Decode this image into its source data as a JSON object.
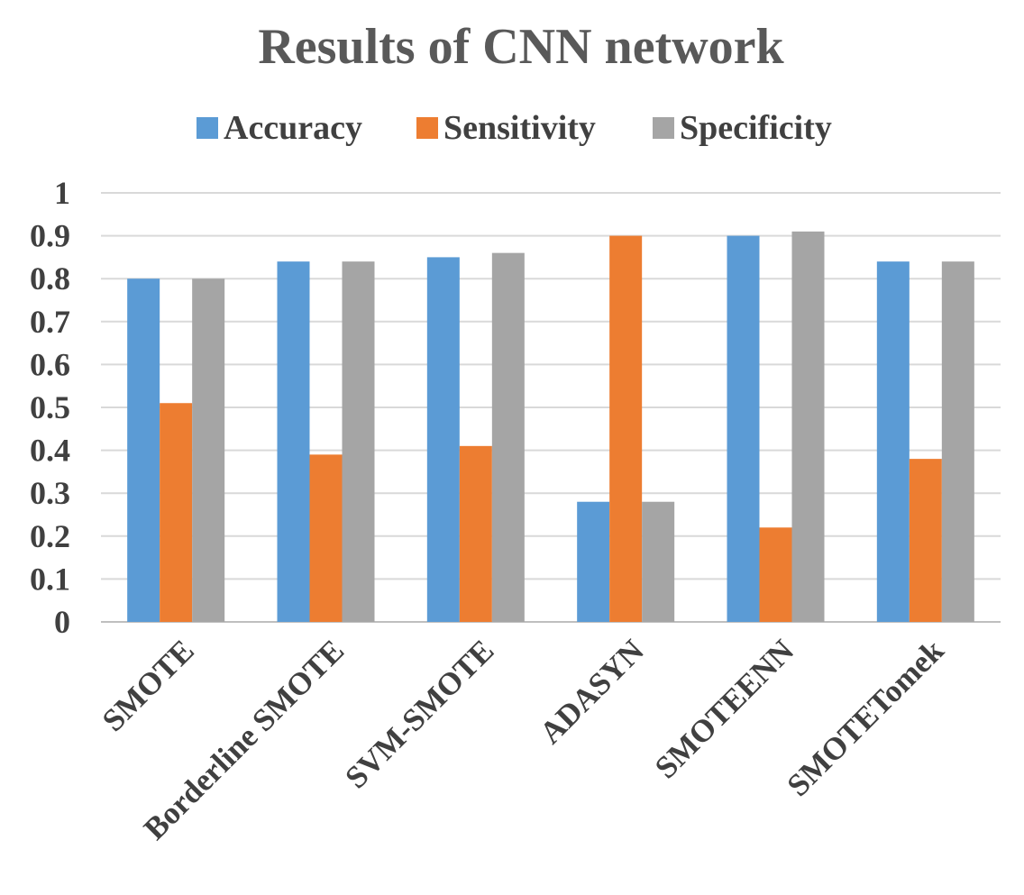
{
  "chart_data": {
    "type": "bar",
    "title": "Results of CNN network",
    "xlabel": "",
    "ylabel": "",
    "categories": [
      "SMOTE",
      "Borderline SMOTE",
      "SVM-SMOTE",
      "ADASYN",
      "SMOTEENN",
      "SMOTETomek"
    ],
    "series": [
      {
        "name": "Accuracy",
        "color": "#5b9bd5",
        "values": [
          0.8,
          0.84,
          0.85,
          0.28,
          0.9,
          0.84
        ]
      },
      {
        "name": "Sensitivity",
        "color": "#ed7d31",
        "values": [
          0.51,
          0.39,
          0.41,
          0.9,
          0.22,
          0.38
        ]
      },
      {
        "name": "Specificity",
        "color": "#a5a5a5",
        "values": [
          0.8,
          0.84,
          0.86,
          0.28,
          0.91,
          0.84
        ]
      }
    ],
    "ylim": [
      0,
      1
    ],
    "yticks": [
      "0",
      "0.1",
      "0.2",
      "0.3",
      "0.4",
      "0.5",
      "0.6",
      "0.7",
      "0.8",
      "0.9",
      "1"
    ],
    "grid": true,
    "legend_position": "top"
  }
}
